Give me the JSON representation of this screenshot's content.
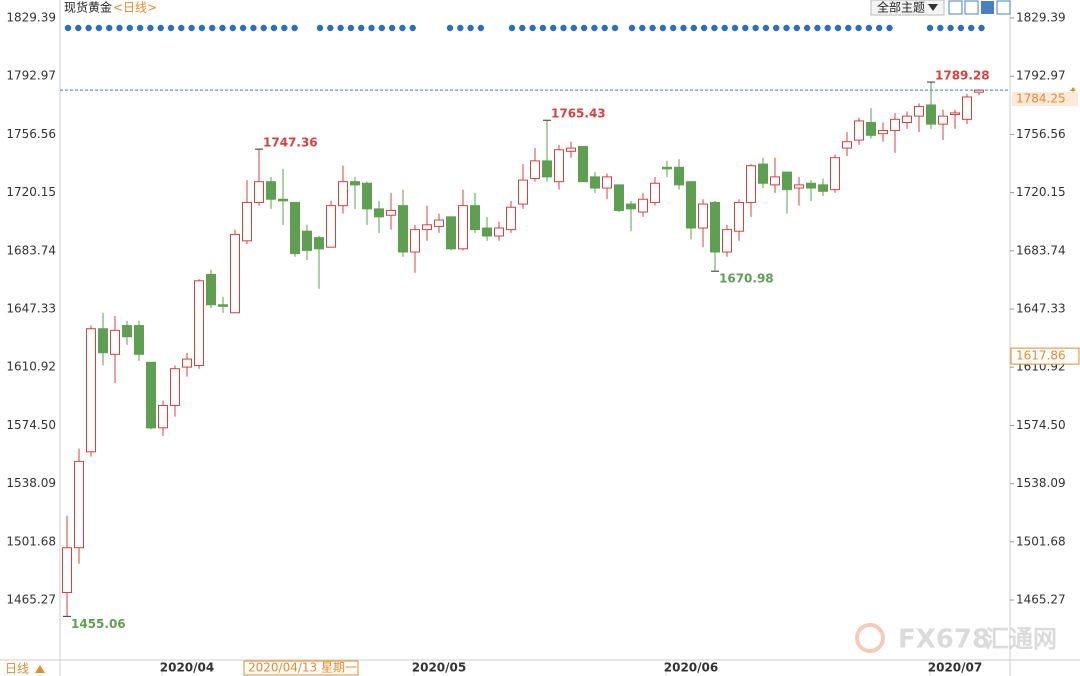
{
  "header": {
    "title": "现货黄金",
    "period": "<日线>",
    "theme_button": "全部主题",
    "period_button": "日线"
  },
  "watermark": {
    "brand": "FX678",
    "name": "汇通网"
  },
  "chart_data": {
    "type": "candlestick",
    "x": [
      null,
      null,
      null,
      null,
      null,
      null,
      null,
      null,
      null,
      null,
      "2020/04",
      null,
      null,
      null,
      null,
      null,
      null,
      null,
      null,
      null,
      null,
      null,
      null,
      null,
      null,
      null,
      null,
      null,
      null,
      null,
      null,
      "2020/05",
      null,
      null,
      null,
      null,
      null,
      null,
      null,
      null,
      null,
      null,
      null,
      null,
      null,
      null,
      null,
      null,
      null,
      null,
      null,
      null,
      "2020/06",
      null,
      null,
      null,
      null,
      null,
      null,
      null,
      null,
      null,
      null,
      null,
      null,
      null,
      null,
      null,
      null,
      null,
      null,
      null,
      null,
      null,
      "2020/07",
      null,
      null
    ],
    "open": [
      1470,
      1498,
      1558,
      1635,
      1619,
      1637,
      1637,
      1614,
      1573,
      1587,
      1611,
      1612,
      1669,
      1650,
      1645,
      1690,
      1714,
      1727,
      1716,
      1714,
      1696,
      1692,
      1686,
      1712,
      1727,
      1726,
      1710,
      1706,
      1712,
      1683,
      1697,
      1699,
      1705,
      1685,
      1712,
      1698,
      1693,
      1697,
      1713,
      1729,
      1740,
      1727,
      1746,
      1749,
      1730,
      1723,
      1725,
      1713,
      1708,
      1714,
      1736,
      1736,
      1727,
      1698,
      1714,
      1683,
      1696,
      1714,
      1738,
      1725,
      1733,
      1723,
      1726,
      1725,
      1722,
      1748,
      1753,
      1764,
      1757,
      1759,
      1764,
      1768,
      1775,
      1763,
      1769,
      1766,
      1783
    ],
    "high": [
      1518,
      1560,
      1637,
      1645,
      1643,
      1640,
      1640,
      1614,
      1590,
      1612,
      1620,
      1666,
      1672,
      1655,
      1697,
      1728,
      1747.36,
      1730,
      1735,
      1714,
      1700,
      1693,
      1715,
      1737,
      1730,
      1727,
      1715,
      1720,
      1722,
      1700,
      1712,
      1707,
      1705,
      1722,
      1720,
      1705,
      1702,
      1715,
      1738,
      1748,
      1765.43,
      1750,
      1752,
      1749,
      1733,
      1732,
      1725,
      1715,
      1720,
      1730,
      1740,
      1741,
      1727,
      1716,
      1715,
      1700,
      1716,
      1738,
      1742,
      1742,
      1733,
      1730,
      1728,
      1729,
      1744,
      1758,
      1767,
      1773,
      1764,
      1770,
      1771,
      1776,
      1789.28,
      1772,
      1772,
      1782,
      1785
    ],
    "low": [
      1455.06,
      1488,
      1555,
      1612,
      1601,
      1625,
      1615,
      1572,
      1568,
      1580,
      1605,
      1610,
      1648,
      1645,
      1645,
      1688,
      1712,
      1710,
      1700,
      1680,
      1678,
      1660,
      1686,
      1707,
      1710,
      1700,
      1695,
      1697,
      1680,
      1670,
      1690,
      1695,
      1684,
      1684,
      1695,
      1690,
      1690,
      1695,
      1710,
      1727,
      1727,
      1722,
      1742,
      1727,
      1720,
      1716,
      1708,
      1696,
      1705,
      1712,
      1730,
      1722,
      1691,
      1686,
      1670.98,
      1680,
      1690,
      1705,
      1723,
      1720,
      1707,
      1712,
      1715,
      1718,
      1720,
      1743,
      1750,
      1754,
      1752,
      1745,
      1760,
      1758,
      1760,
      1753,
      1760,
      1763,
      1781
    ],
    "close": [
      1498,
      1552,
      1635,
      1620,
      1634,
      1630,
      1619,
      1573,
      1587,
      1610,
      1616,
      1665,
      1650,
      1649,
      1694,
      1714,
      1727,
      1716,
      1715,
      1682,
      1684,
      1685,
      1712,
      1727,
      1725,
      1710,
      1705,
      1709,
      1683,
      1697,
      1700,
      1703,
      1685,
      1712,
      1697,
      1693,
      1698,
      1711,
      1728,
      1740,
      1730,
      1747,
      1748,
      1727,
      1723,
      1730,
      1709,
      1710,
      1716,
      1726,
      1735,
      1725,
      1698,
      1713,
      1683,
      1697,
      1714,
      1737,
      1726,
      1730,
      1722,
      1725,
      1723,
      1721,
      1742,
      1752,
      1765,
      1756,
      1759,
      1766,
      1768,
      1774,
      1763,
      1768,
      1770,
      1780,
      1784.25
    ],
    "up_color": "#d9413f",
    "down_color": "#5e9f52",
    "ylim": [
      1427.76,
      1840.65
    ],
    "yticks": [
      1829.39,
      1792.97,
      1756.56,
      1720.15,
      1683.74,
      1647.33,
      1610.92,
      {
        "value": 1574.5,
        "label": "1574.50"
      },
      1538.09,
      1501.68,
      1465.27
    ],
    "crosshair": {
      "value": 1617.86,
      "date": "2020/04/13 星期一"
    }
  }
}
